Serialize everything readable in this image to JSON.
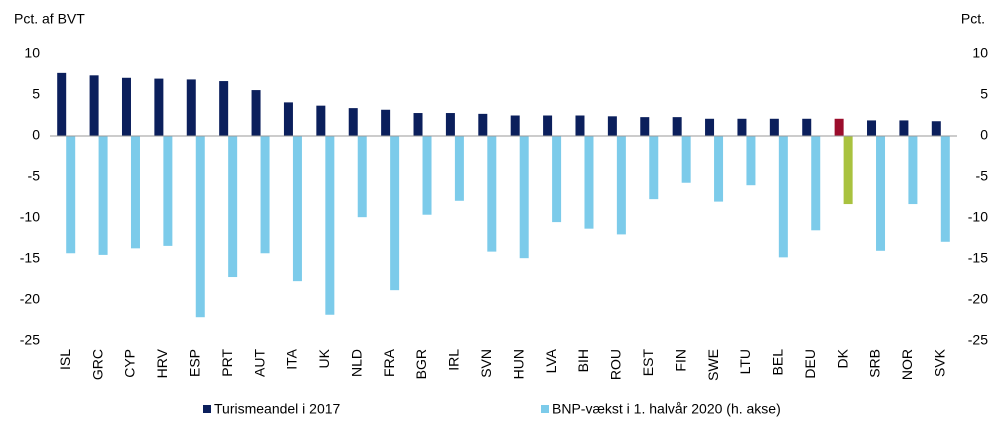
{
  "chart_data": {
    "type": "bar",
    "y_label": "Pct. af BVT",
    "y2_label": "Pct.",
    "categories": [
      "ISL",
      "GRC",
      "CYP",
      "HRV",
      "ESP",
      "PRT",
      "AUT",
      "ITA",
      "UK",
      "NLD",
      "FRA",
      "BGR",
      "IRL",
      "SVN",
      "HUN",
      "LVA",
      "BIH",
      "ROU",
      "EST",
      "FIN",
      "SWE",
      "LTU",
      "BEL",
      "DEU",
      "DK",
      "SRB",
      "NOR",
      "SVK"
    ],
    "series": [
      {
        "name": "Turismeandel i 2017",
        "color": "#0b1f5c",
        "highlight": {
          "DK": "#9b0d2c"
        },
        "values": [
          7.7,
          7.4,
          7.1,
          7.0,
          6.9,
          6.7,
          5.6,
          4.1,
          3.7,
          3.4,
          3.2,
          2.8,
          2.8,
          2.7,
          2.5,
          2.5,
          2.5,
          2.4,
          2.3,
          2.3,
          2.1,
          2.1,
          2.1,
          2.1,
          2.1,
          1.9,
          1.9,
          1.8
        ]
      },
      {
        "name": "BNP-vækst i 1. halvår 2020 (h. akse)",
        "color": "#7ccbea",
        "axis": "y2",
        "highlight": {
          "DK": "#a9c23f"
        },
        "values": [
          -14.3,
          -14.5,
          -13.7,
          -13.4,
          -22.1,
          -17.2,
          -14.3,
          -17.7,
          -21.8,
          -9.9,
          -18.8,
          -9.6,
          -7.9,
          -14.1,
          -14.9,
          -10.5,
          -11.3,
          -12.0,
          -7.7,
          -5.7,
          -8.0,
          -6.0,
          -14.8,
          -11.5,
          -8.3,
          -14.0,
          -8.3,
          -12.9
        ]
      }
    ],
    "ylim": [
      -25,
      10
    ],
    "yticks": [
      -25,
      -20,
      -15,
      -10,
      -5,
      0,
      5,
      10
    ],
    "y2lim": [
      -25,
      10
    ],
    "y2ticks": [
      -25,
      -20,
      -15,
      -10,
      -5,
      0,
      5,
      10
    ],
    "legend": "bottom"
  }
}
